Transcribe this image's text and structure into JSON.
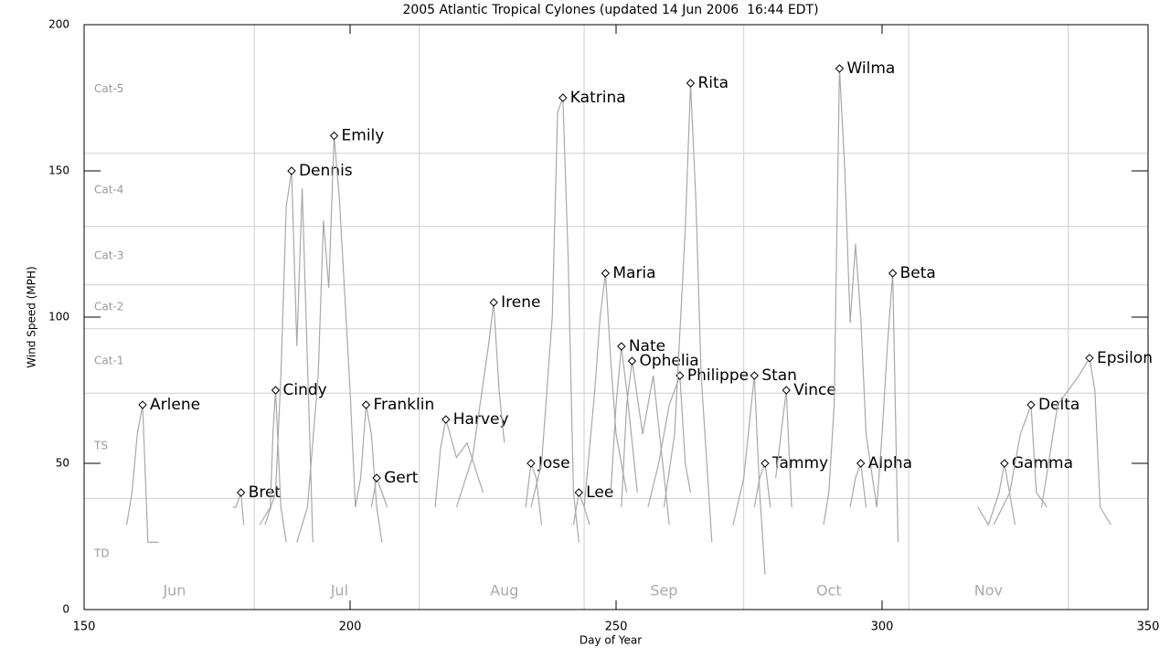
{
  "chart_data": {
    "type": "line",
    "title": "2005 Atlantic Tropical Cylones (updated 14 Jun 2006  16:44 EDT)",
    "x_label": "Day of Year",
    "y_label": "Wind Speed (MPH)",
    "xlim": [
      150,
      350
    ],
    "ylim": [
      0,
      200
    ],
    "xticks": [
      150,
      200,
      250,
      300,
      350
    ],
    "yticks": [
      0,
      50,
      100,
      150,
      200
    ],
    "category_thresholds": [
      38,
      74,
      96,
      111,
      131,
      156
    ],
    "category_labels": [
      "TD",
      "TS",
      "Cat-1",
      "Cat-2",
      "Cat-3",
      "Cat-4",
      "Cat-5"
    ],
    "month_boundaries": [
      182,
      213,
      244,
      274,
      305,
      335
    ],
    "months": [
      "Jun",
      "Jul",
      "Aug",
      "Sep",
      "Oct",
      "Nov"
    ],
    "line_color": "#a8a8a8",
    "series": [
      {
        "name": "Arlene",
        "x": [
          158,
          159,
          160,
          161,
          162,
          164
        ],
        "values": [
          29,
          40,
          60,
          70,
          23,
          23
        ]
      },
      {
        "name": "Bret",
        "x": [
          178,
          178.5,
          179.5,
          180
        ],
        "values": [
          35,
          35,
          40,
          29
        ]
      },
      {
        "name": "Cindy",
        "x": [
          183,
          185,
          185.5,
          186,
          187,
          188
        ],
        "values": [
          29,
          35,
          60,
          75,
          35,
          23
        ]
      },
      {
        "name": "Dennis",
        "x": [
          184,
          186,
          187,
          188,
          189,
          190,
          191,
          193
        ],
        "values": [
          29,
          40,
          80,
          138,
          150,
          90,
          144,
          23
        ]
      },
      {
        "name": "Emily",
        "x": [
          190,
          192,
          194,
          195,
          196,
          197,
          198,
          200,
          201
        ],
        "values": [
          23,
          35,
          80,
          133,
          110,
          162,
          140,
          75,
          35
        ]
      },
      {
        "name": "Franklin",
        "x": [
          201,
          202,
          203,
          204,
          205,
          206
        ],
        "values": [
          35,
          45,
          70,
          60,
          35,
          23
        ]
      },
      {
        "name": "Gert",
        "x": [
          204,
          205,
          206,
          207
        ],
        "values": [
          35,
          45,
          40,
          35
        ]
      },
      {
        "name": "Harvey",
        "x": [
          216,
          217,
          218,
          220,
          222,
          225
        ],
        "values": [
          35,
          55,
          65,
          52,
          57,
          40
        ]
      },
      {
        "name": "Irene",
        "x": [
          220,
          223,
          226,
          227,
          228,
          229
        ],
        "values": [
          35,
          52,
          90,
          105,
          75,
          57
        ]
      },
      {
        "name": "Jose",
        "x": [
          233,
          234,
          235,
          236
        ],
        "values": [
          35,
          50,
          45,
          29
        ]
      },
      {
        "name": "Katrina",
        "x": [
          234,
          236,
          238,
          239,
          240,
          241,
          242,
          243
        ],
        "values": [
          35,
          50,
          100,
          170,
          175,
          120,
          40,
          23
        ]
      },
      {
        "name": "Lee",
        "x": [
          242,
          243,
          244,
          245
        ],
        "values": [
          29,
          40,
          35,
          29
        ]
      },
      {
        "name": "Maria",
        "x": [
          244,
          246,
          247,
          248,
          249,
          250,
          252
        ],
        "values": [
          35,
          75,
          100,
          115,
          85,
          60,
          40
        ]
      },
      {
        "name": "Nate",
        "x": [
          249,
          250,
          251,
          252,
          254
        ],
        "values": [
          40,
          70,
          90,
          75,
          40
        ]
      },
      {
        "name": "Ophelia",
        "x": [
          251,
          252,
          253,
          255,
          257,
          260
        ],
        "values": [
          35,
          70,
          85,
          60,
          80,
          29
        ]
      },
      {
        "name": "Philippe",
        "x": [
          256,
          258,
          260,
          262,
          263,
          264
        ],
        "values": [
          35,
          50,
          70,
          80,
          50,
          40
        ]
      },
      {
        "name": "Rita",
        "x": [
          259,
          261,
          263,
          264,
          265,
          266,
          268
        ],
        "values": [
          35,
          60,
          130,
          180,
          140,
          80,
          23
        ]
      },
      {
        "name": "Stan",
        "x": [
          272,
          274,
          276,
          277,
          278
        ],
        "values": [
          29,
          45,
          80,
          40,
          12
        ]
      },
      {
        "name": "Tammy",
        "x": [
          276,
          277,
          278,
          279
        ],
        "values": [
          35,
          45,
          50,
          35
        ]
      },
      {
        "name": "Vince",
        "x": [
          280,
          281,
          282,
          283
        ],
        "values": [
          45,
          60,
          75,
          35
        ]
      },
      {
        "name": "Wilma",
        "x": [
          289,
          290,
          291,
          292,
          293,
          294,
          295,
          296,
          297,
          299
        ],
        "values": [
          29,
          40,
          70,
          185,
          150,
          98,
          125,
          100,
          60,
          35
        ]
      },
      {
        "name": "Alpha",
        "x": [
          294,
          295,
          296,
          297
        ],
        "values": [
          35,
          45,
          50,
          35
        ]
      },
      {
        "name": "Beta",
        "x": [
          299,
          300,
          301,
          302,
          303
        ],
        "values": [
          35,
          60,
          90,
          115,
          23
        ]
      },
      {
        "name": "Gamma",
        "x": [
          318,
          320,
          322,
          323,
          325
        ],
        "values": [
          35,
          29,
          40,
          50,
          29
        ]
      },
      {
        "name": "Delta",
        "x": [
          321,
          324,
          326,
          328,
          329,
          331
        ],
        "values": [
          29,
          40,
          60,
          70,
          40,
          35
        ]
      },
      {
        "name": "Epsilon",
        "x": [
          330,
          333,
          335,
          337,
          339,
          340,
          341,
          343
        ],
        "values": [
          35,
          70,
          75,
          80,
          86,
          75,
          35,
          29
        ]
      }
    ]
  }
}
